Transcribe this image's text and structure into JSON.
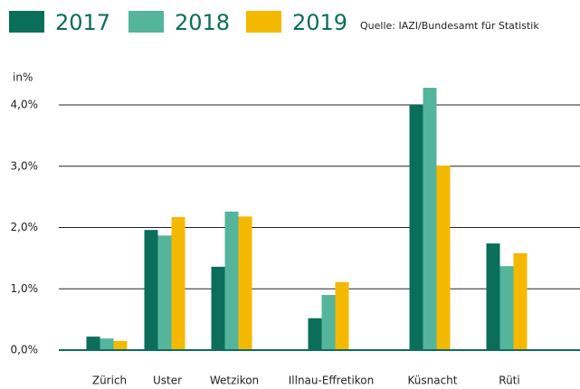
{
  "chart_data": {
    "type": "bar",
    "source": "Quelle: IAZI/Bundesamt für Statistik",
    "y_label": "in%",
    "categories": [
      "Zürich",
      "Uster",
      "Wetzikon",
      "Illnau-Effretikon",
      "Küsnacht",
      "Rüti"
    ],
    "series": [
      {
        "name": "2017",
        "color": "#0a6e5a",
        "values": [
          0.22,
          1.96,
          1.36,
          0.52,
          4.0,
          1.74
        ]
      },
      {
        "name": "2018",
        "color": "#55b59c",
        "values": [
          0.19,
          1.87,
          2.26,
          0.9,
          4.28,
          1.37
        ]
      },
      {
        "name": "2019",
        "color": "#f5b800",
        "values": [
          0.15,
          2.17,
          2.18,
          1.11,
          3.01,
          1.58
        ]
      }
    ],
    "ylim": [
      0,
      4.0
    ],
    "yticks": [
      {
        "value": 0,
        "label": "0,0%"
      },
      {
        "value": 1,
        "label": "1,0%"
      },
      {
        "value": 2,
        "label": "2,0%"
      },
      {
        "value": 3,
        "label": "3,0%"
      },
      {
        "value": 4,
        "label": "4,0%"
      }
    ],
    "grid": true
  }
}
